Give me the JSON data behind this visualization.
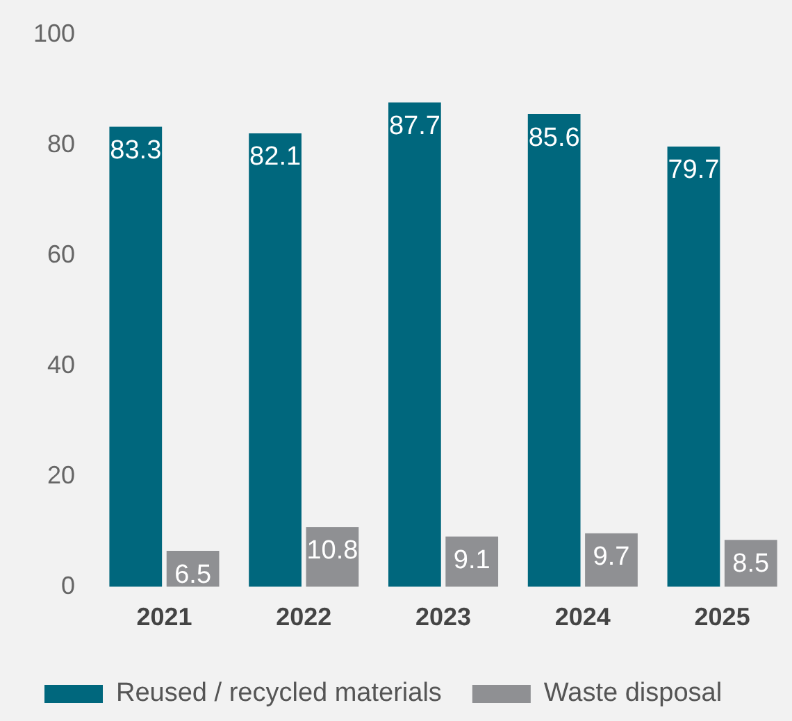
{
  "chart_data": {
    "type": "bar",
    "categories": [
      "2021",
      "2022",
      "2023",
      "2024",
      "2025"
    ],
    "series": [
      {
        "name": "Reused / recycled materials",
        "color": "#00677d",
        "values": [
          83.3,
          82.1,
          87.7,
          85.6,
          79.7
        ]
      },
      {
        "name": "Waste disposal",
        "color": "#8f9093",
        "values": [
          6.5,
          10.8,
          9.1,
          9.7,
          8.5
        ]
      }
    ],
    "ylim": [
      0,
      100
    ],
    "yticks": [
      0,
      20,
      40,
      60,
      80,
      100
    ],
    "grid": false,
    "legend": "bottom",
    "data_labels": true
  }
}
